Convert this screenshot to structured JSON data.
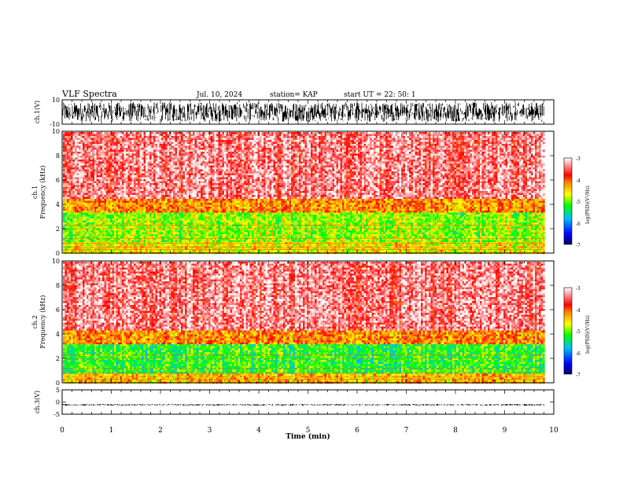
{
  "header": {
    "title": "VLF Spectra",
    "date": "Jul. 10, 2024",
    "station": "station= KAP",
    "start": "start UT =  22: 50: 1"
  },
  "colors": {
    "scale": [
      "#000066",
      "#0000ff",
      "#00bfff",
      "#00ff00",
      "#ffff00",
      "#ff7f00",
      "#ff0000",
      "#ff9999",
      "#ffffff"
    ]
  },
  "chart_data": [
    {
      "type": "line",
      "panel": "ch1-waveform",
      "ylabel": "ch.1(V)",
      "ylim": [
        -10,
        10
      ],
      "yticks": [
        "10",
        "-10"
      ],
      "xlim": [
        0,
        10
      ],
      "description_values": "dense broadband noise filling approx -8 to +8 V for t = 0 to 9.8 min"
    },
    {
      "type": "heatmap",
      "panel": "ch1-spectrogram",
      "ylabel": "ch.1\nFrequency (kHz)",
      "ylabel_line1": "ch.1",
      "ylabel_line2": "Frequency (kHz)",
      "ylim": [
        0,
        10
      ],
      "yticks": [
        "0",
        "2",
        "4",
        "6",
        "8",
        "10"
      ],
      "xlim": [
        0,
        10
      ],
      "data_end_min": 9.8,
      "bands": [
        {
          "f_from": 0.0,
          "f_to": 1.0,
          "log_psd": -4.6
        },
        {
          "f_from": 1.0,
          "f_to": 3.4,
          "log_psd": -4.9
        },
        {
          "f_from": 3.4,
          "f_to": 4.5,
          "log_psd": -4.2
        },
        {
          "f_from": 4.5,
          "f_to": 10.0,
          "log_psd": -3.4
        }
      ],
      "colorbar": {
        "label": "log(PSD)(V²/Hz)",
        "ticks": [
          "-3",
          "-4",
          "-5",
          "-6",
          "-7"
        ],
        "range": [
          -7,
          -3
        ]
      }
    },
    {
      "type": "heatmap",
      "panel": "ch2-spectrogram",
      "ylabel": "ch.2\nFrequency (kHz)",
      "ylabel_line1": "ch.2",
      "ylabel_line2": "Frequency (kHz)",
      "ylim": [
        0,
        10
      ],
      "yticks": [
        "0",
        "2",
        "4",
        "6",
        "8",
        "10"
      ],
      "xlim": [
        0,
        10
      ],
      "data_end_min": 9.8,
      "bands": [
        {
          "f_from": 0.0,
          "f_to": 0.8,
          "log_psd": -4.4
        },
        {
          "f_from": 0.8,
          "f_to": 3.2,
          "log_psd": -5.2
        },
        {
          "f_from": 3.2,
          "f_to": 4.4,
          "log_psd": -4.2
        },
        {
          "f_from": 4.4,
          "f_to": 10.0,
          "log_psd": -3.4
        }
      ],
      "colorbar": {
        "label": "log(PSD)(V²/Hz)",
        "ticks": [
          "-3",
          "-4",
          "-5",
          "-6",
          "-7"
        ],
        "range": [
          -7,
          -3
        ]
      }
    },
    {
      "type": "line",
      "panel": "ch3-waveform",
      "ylabel": "ch.3(V)",
      "ylim": [
        -5,
        5
      ],
      "yticks": [
        "5",
        "0",
        "-5"
      ],
      "xlim": [
        0,
        10
      ],
      "xlabel": "Time (min)",
      "xticks": [
        "0",
        "1",
        "2",
        "3",
        "4",
        "5",
        "6",
        "7",
        "8",
        "9",
        "10"
      ],
      "description_values": "flat signal band between about -1.5 and -0.8 V for t = 0 to 9.8 min"
    }
  ]
}
